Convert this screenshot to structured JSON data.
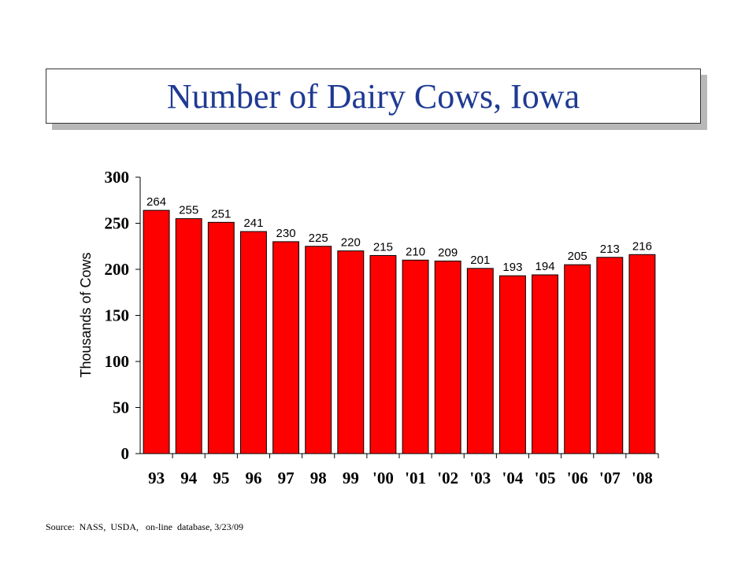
{
  "chart_data": {
    "type": "bar",
    "title": "Number of Dairy Cows, Iowa",
    "ylabel": "Thousands of Cows",
    "xlabel": "",
    "categories": [
      "93",
      "94",
      "95",
      "96",
      "97",
      "98",
      "99",
      "'00",
      "'01",
      "'02",
      "'03",
      "'04",
      "'05",
      "'06",
      "'07",
      "'08"
    ],
    "values": [
      264,
      255,
      251,
      241,
      230,
      225,
      220,
      215,
      210,
      209,
      201,
      193,
      194,
      205,
      213,
      216
    ],
    "ylim": [
      0,
      300
    ],
    "yticks": [
      0,
      50,
      100,
      150,
      200,
      250,
      300
    ],
    "bar_color": "#ff0000",
    "grid": false,
    "legend": "none"
  },
  "source": "Source:  NASS,  USDA,   on-line  database, 3/23/09"
}
